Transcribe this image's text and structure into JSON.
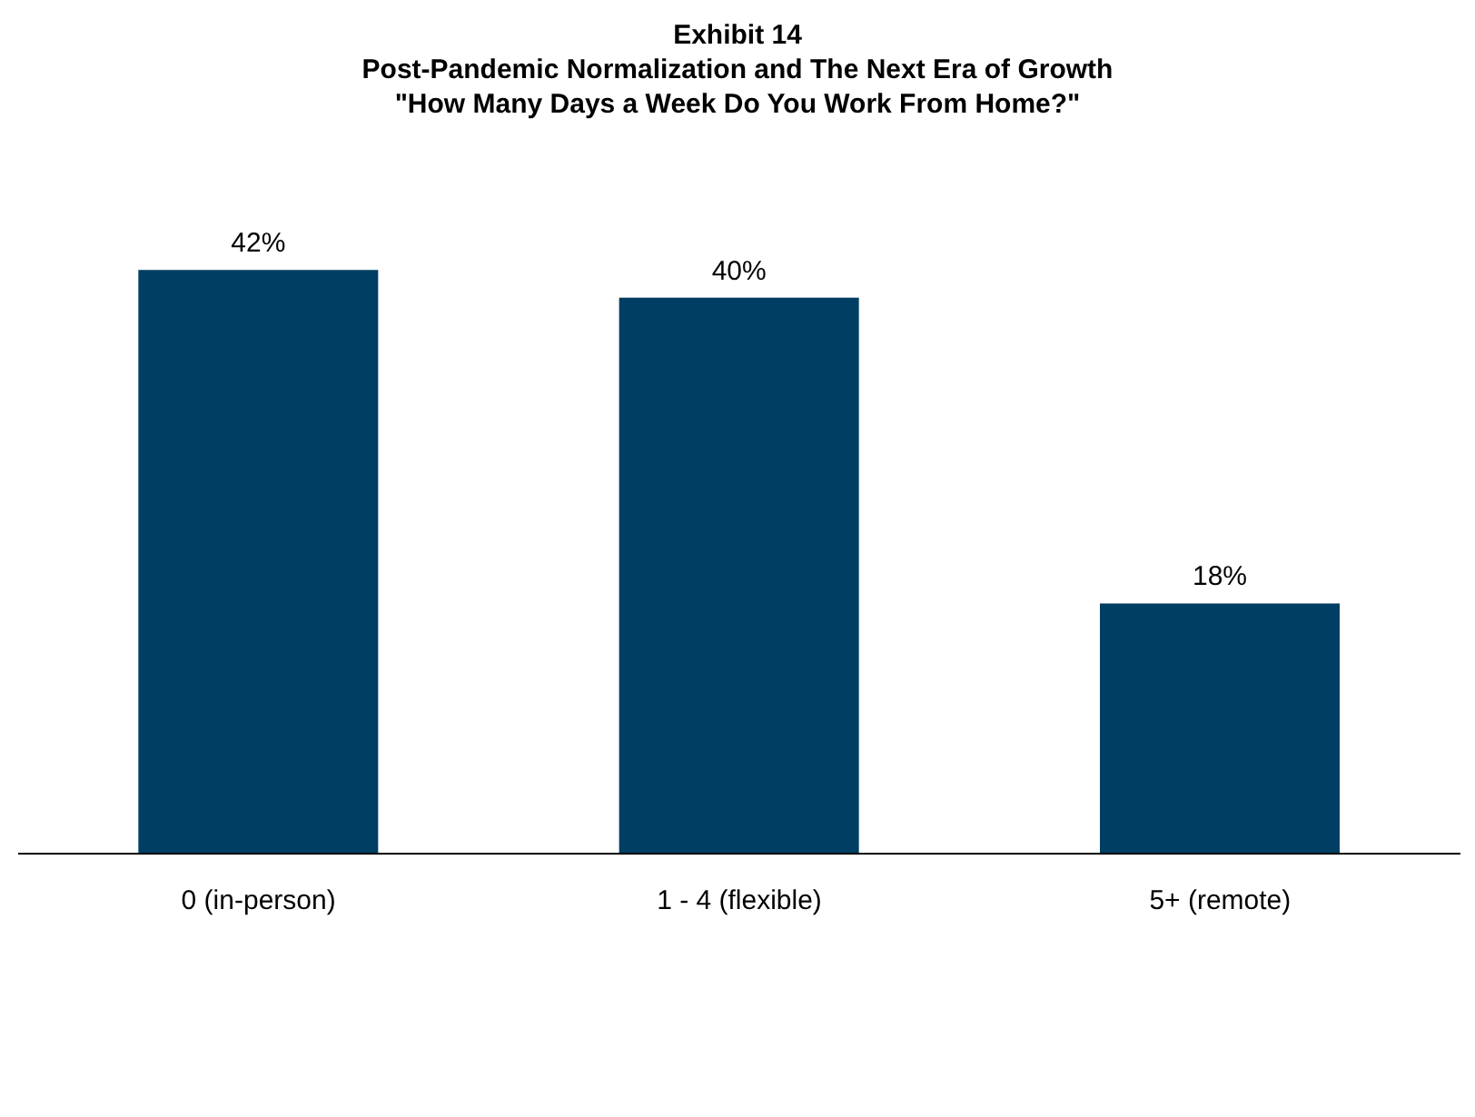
{
  "chart_data": {
    "type": "bar",
    "title": "Exhibit 14",
    "subtitle": "Post-Pandemic Normalization and The Next Era of Growth\n\"How Many Days a Week Do You Work From Home?\"",
    "categories": [
      "0 (in-person)",
      "1 - 4 (flexible)",
      "5+ (remote)"
    ],
    "values": [
      42,
      40,
      18
    ],
    "color": "#003f63",
    "value_labels": [
      "42%",
      "40%",
      "18%"
    ]
  }
}
